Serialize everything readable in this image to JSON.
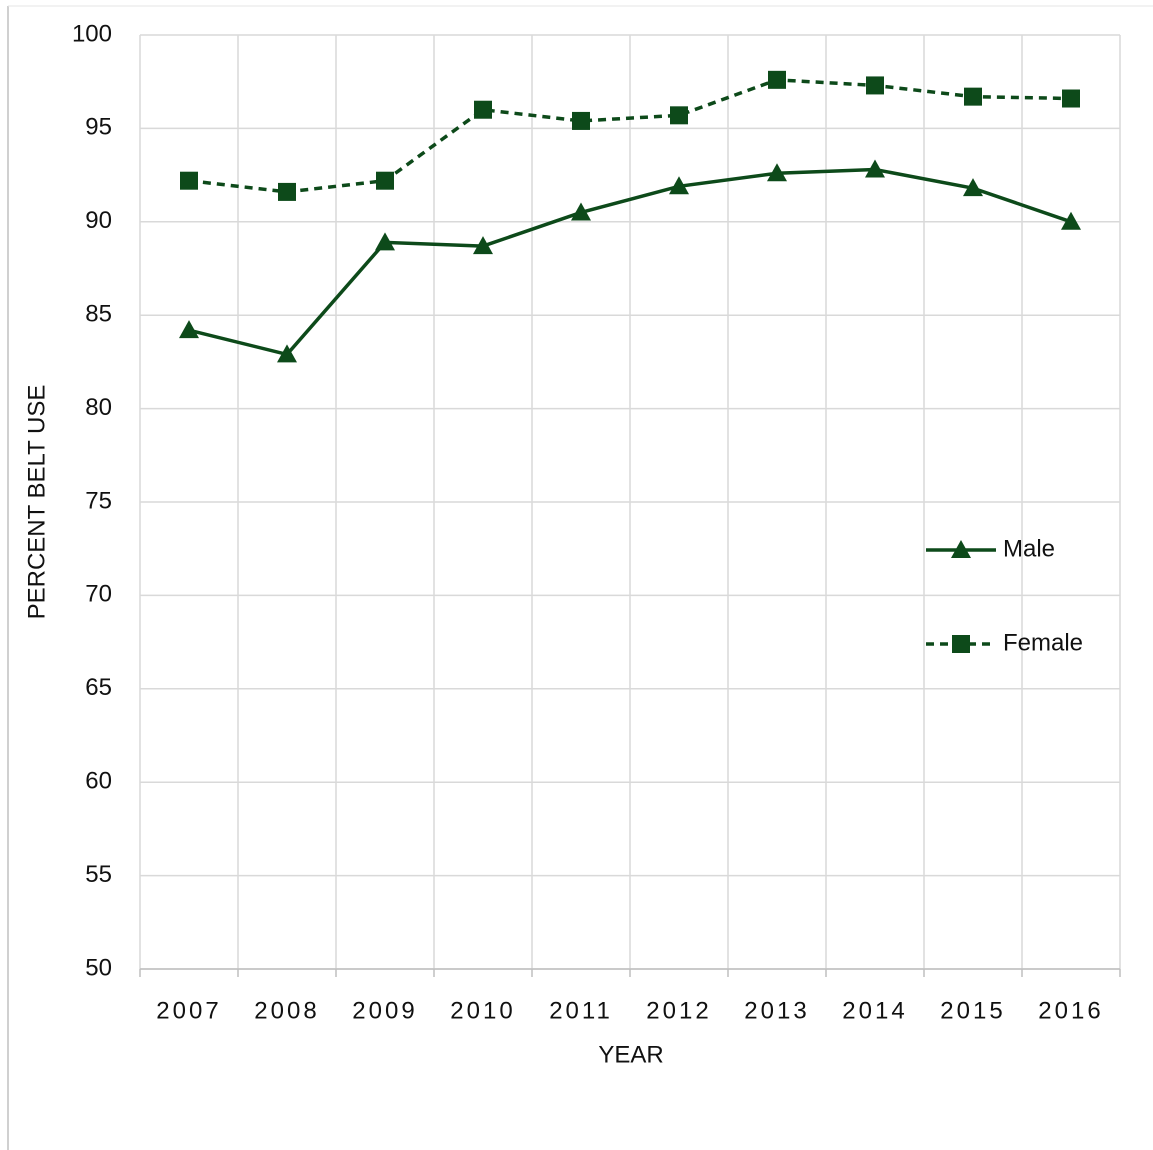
{
  "chart_data": {
    "type": "line",
    "x_label": "YEAR",
    "y_label": "PERCENT BELT USE",
    "categories": [
      "2007",
      "2008",
      "2009",
      "2010",
      "2011",
      "2012",
      "2013",
      "2014",
      "2015",
      "2016"
    ],
    "series": [
      {
        "name": "Male",
        "color": "#0d4a1a",
        "line_style": "solid",
        "marker": "triangle",
        "values": [
          84.2,
          82.9,
          88.9,
          88.7,
          90.5,
          91.9,
          92.6,
          92.8,
          91.8,
          90.0
        ]
      },
      {
        "name": "Female",
        "color": "#0d4a1a",
        "line_style": "dashed",
        "marker": "square",
        "values": [
          92.2,
          91.6,
          92.2,
          96.0,
          95.4,
          95.7,
          97.6,
          97.3,
          96.7,
          96.6
        ]
      }
    ],
    "ylim": [
      50,
      100
    ],
    "yticks": [
      50,
      55,
      60,
      65,
      70,
      75,
      80,
      85,
      90,
      95,
      100
    ],
    "grid": true,
    "legend": "right"
  }
}
